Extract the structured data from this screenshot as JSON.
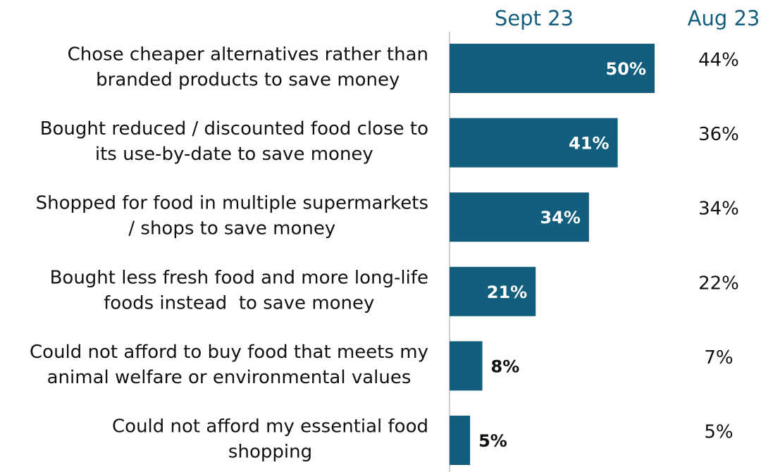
{
  "chart_data": {
    "type": "bar",
    "categories": [
      [
        "Chose cheaper alternatives rather than",
        "branded products to save money"
      ],
      [
        "Bought reduced / discounted food close to",
        "its use-by-date to save money"
      ],
      [
        "Shopped for food in multiple supermarkets",
        "/ shops to save money"
      ],
      [
        "Bought less fresh food and more long-life",
        "foods instead  to save money"
      ],
      [
        "Could not afford to buy food that meets my",
        "animal welfare or environmental values"
      ],
      [
        "Could not afford my essential food",
        "shopping"
      ]
    ],
    "series": [
      {
        "name": "Sept 23",
        "color": "#135e7c",
        "values": [
          50,
          41,
          34,
          21,
          8,
          5
        ],
        "value_labels": [
          "50%",
          "41%",
          "34%",
          "21%",
          "8%",
          "5%"
        ]
      },
      {
        "name": "Aug 23",
        "values": [
          44,
          36,
          34,
          22,
          7,
          5
        ],
        "value_labels": [
          "44%",
          "36%",
          "34%",
          "22%",
          "7%",
          "5%"
        ]
      }
    ]
  }
}
